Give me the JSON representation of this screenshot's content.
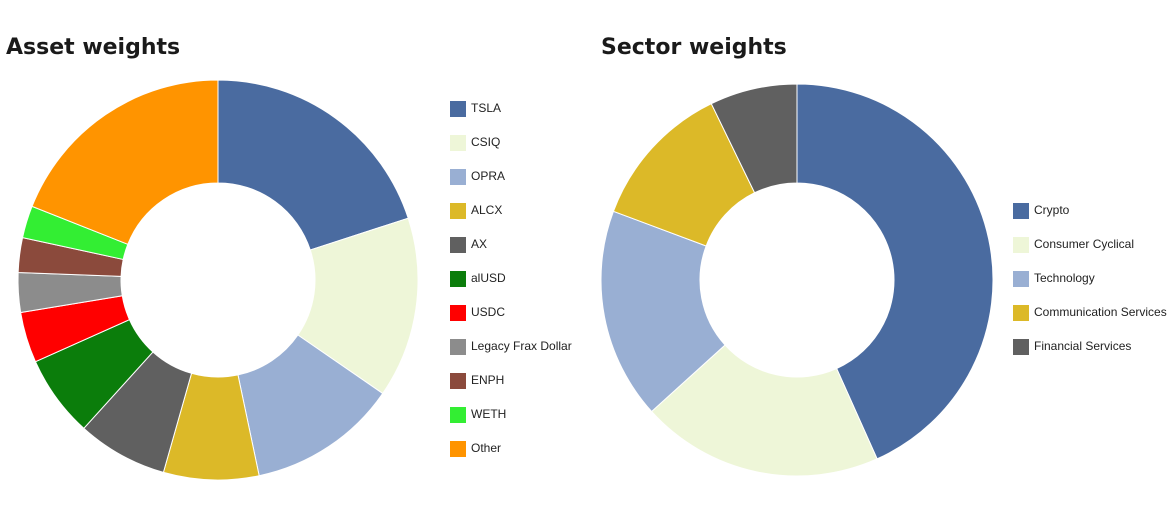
{
  "chart_data": [
    {
      "type": "donut",
      "title": "Asset weights",
      "categories": [
        "TSLA",
        "CSIQ",
        "OPRA",
        "ALCX",
        "AX",
        "alUSD",
        "USDC",
        "Legacy Frax Dollar",
        "ENPH",
        "WETH",
        "Other"
      ],
      "values": [
        20,
        14.6,
        12.1,
        7.7,
        7.3,
        6.6,
        4.1,
        3.2,
        2.8,
        2.6,
        19
      ],
      "colors": [
        "#4a6ba0",
        "#eef6d8",
        "#99afd3",
        "#dcb928",
        "#606060",
        "#0b7d0b",
        "#ff0000",
        "#8c8c8c",
        "#8b4a3c",
        "#33ee33",
        "#ff9400"
      ],
      "legend": "right"
    },
    {
      "type": "donut",
      "title": "Sector weights",
      "categories": [
        "Crypto",
        "Consumer Cyclical",
        "Technology",
        "Communication Services",
        "Financial Services"
      ],
      "values": [
        43.3,
        20,
        17.4,
        12.1,
        7.2
      ],
      "colors": [
        "#4a6ba0",
        "#eef6d8",
        "#99afd3",
        "#dcb928",
        "#606060"
      ],
      "legend": "right"
    }
  ]
}
